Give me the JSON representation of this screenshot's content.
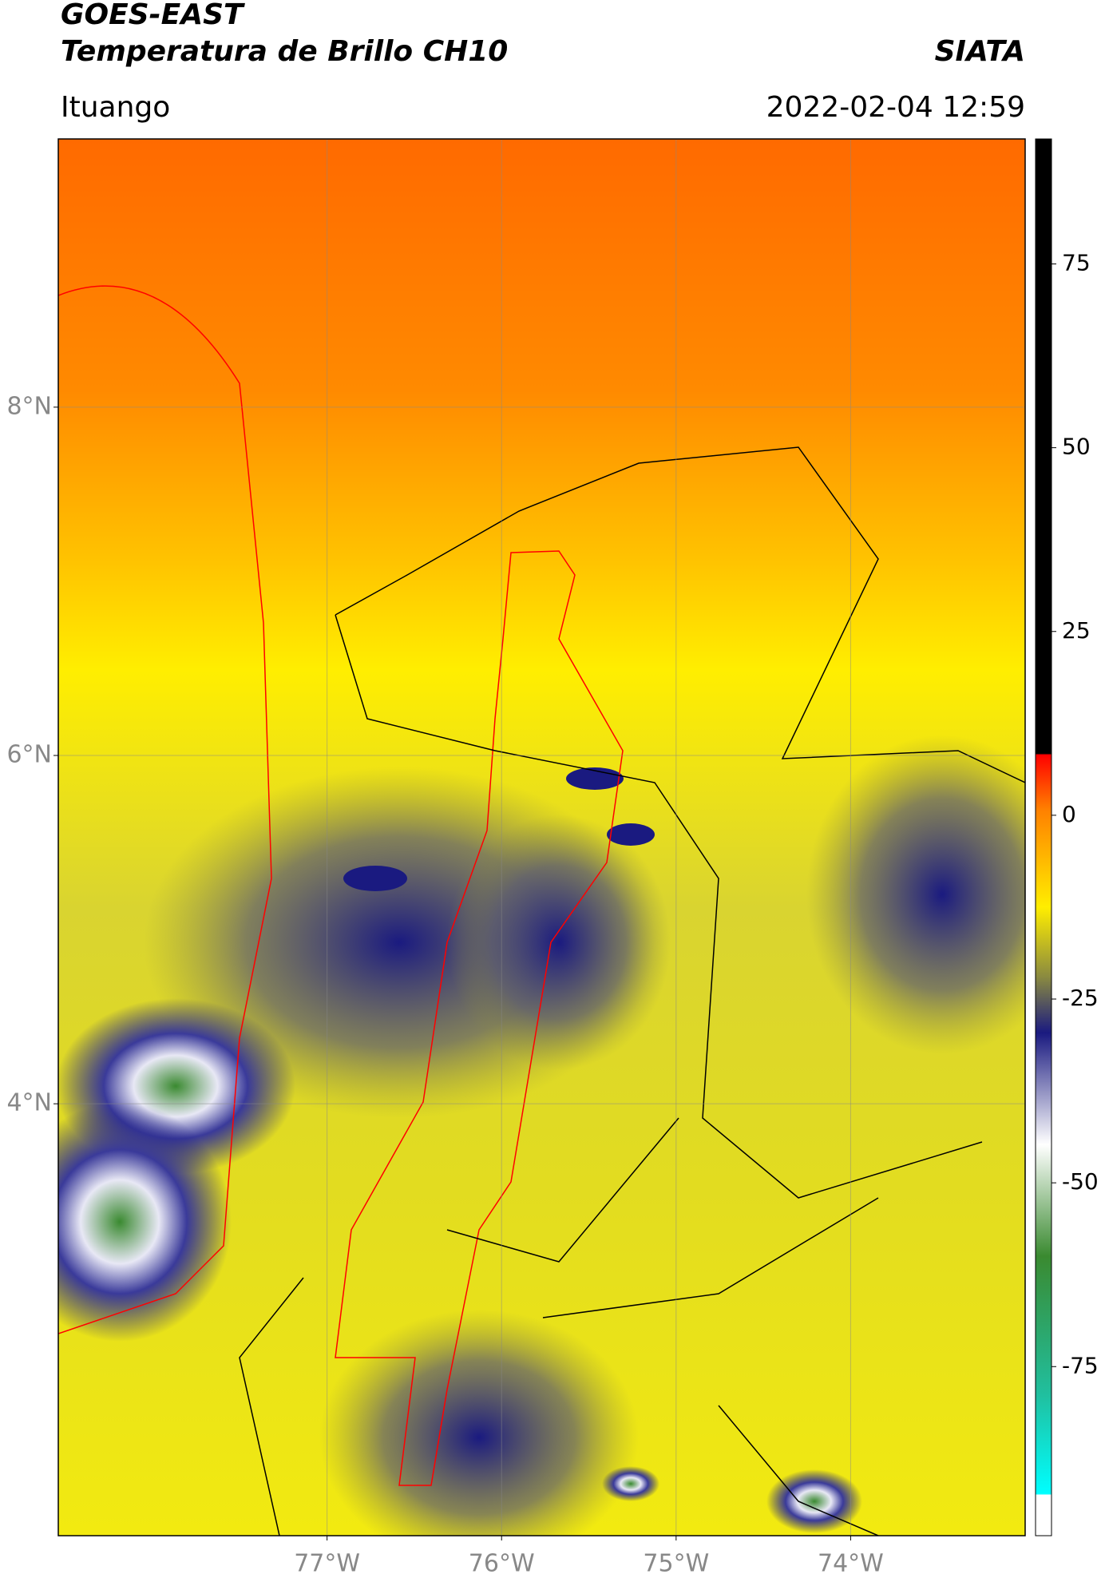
{
  "header": {
    "title_line1": "GOES-EAST",
    "title_line2": "Temperatura de Brillo CH10",
    "source": "SIATA",
    "region": "Ituango",
    "datetime": "2022-02-04 12:59"
  },
  "map": {
    "lonlim": [
      -78.54,
      -73.0
    ],
    "latlim": [
      1.52,
      9.54
    ],
    "lon_ticks": [
      {
        "value": -77,
        "label": "77°W"
      },
      {
        "value": -76,
        "label": "76°W"
      },
      {
        "value": -75,
        "label": "75°W"
      },
      {
        "value": -74,
        "label": "74°W"
      }
    ],
    "lat_ticks": [
      {
        "value": 8,
        "label": "8°N"
      },
      {
        "value": 6,
        "label": "6°N"
      },
      {
        "value": 4,
        "label": "4°N"
      }
    ]
  },
  "colorbar": {
    "clim": [
      -98,
      92
    ],
    "ticks": [
      75,
      50,
      25,
      0,
      -25,
      -50,
      -75
    ]
  }
}
